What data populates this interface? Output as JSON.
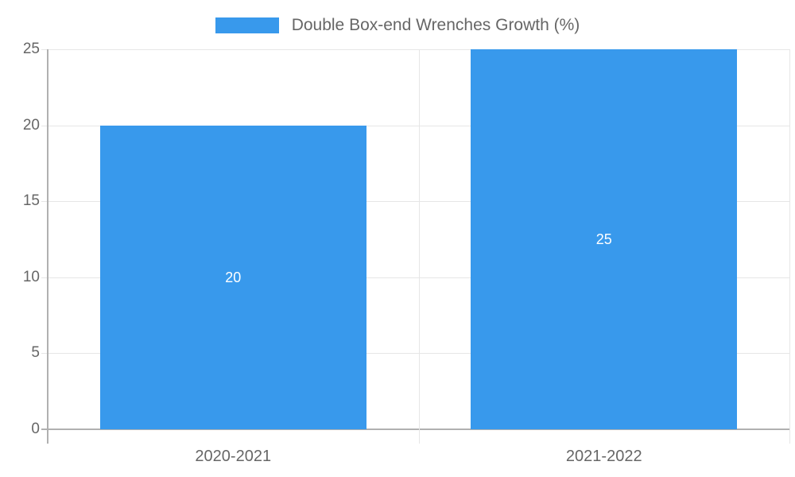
{
  "legend": {
    "label": "Double Box-end Wrenches Growth (%)"
  },
  "chart_data": {
    "type": "bar",
    "categories": [
      "2020-2021",
      "2021-2022"
    ],
    "series": [
      {
        "name": "Double Box-end Wrenches Growth (%)",
        "values": [
          20,
          25
        ]
      }
    ],
    "title": "",
    "xlabel": "",
    "ylabel": "",
    "ylim": [
      0,
      25
    ],
    "yticks": [
      0,
      5,
      10,
      15,
      20,
      25
    ],
    "grid": true,
    "legend_position": "top-center",
    "value_labels_inside_bars": [
      20,
      25
    ]
  },
  "colors": {
    "bar": "#3899EC",
    "gridline": "#e6e6e6",
    "axis_line": "#b0b0b0",
    "tick_text": "#666666",
    "value_label_text": "#ffffff",
    "background": "#ffffff"
  }
}
